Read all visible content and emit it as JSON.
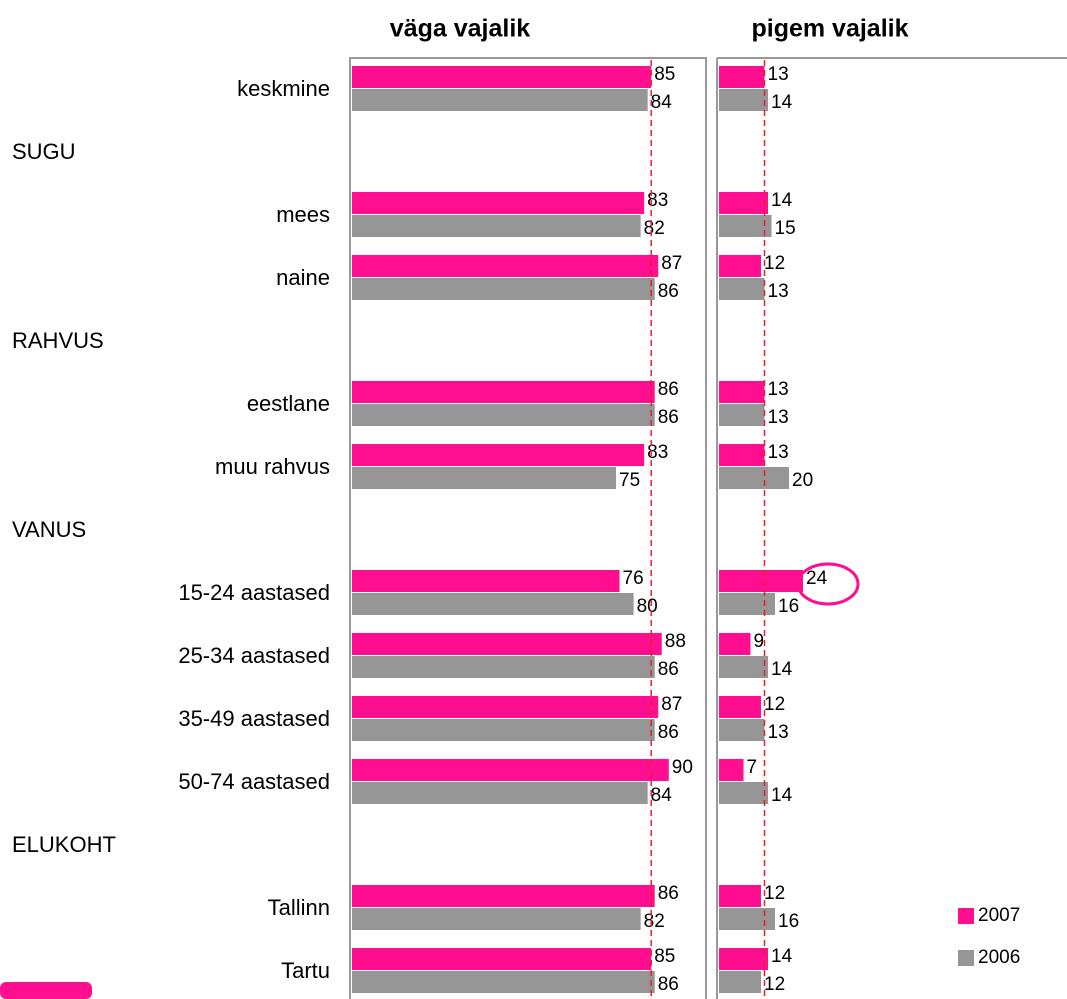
{
  "chart_data": [
    {
      "type": "bar",
      "title": "väga vajalik",
      "categories": [
        "keskmine",
        "SUGU",
        "mees",
        "naine",
        "RAHVUS",
        "eestlane",
        "muu rahvus",
        "VANUS",
        "15-24 aastased",
        "25-34 aastased",
        "35-49 aastased",
        "50-74 aastased",
        "ELUKOHT",
        "Tallinn",
        "Tartu"
      ],
      "xlim": [
        0,
        100
      ],
      "series": [
        {
          "name": "2007",
          "color": "#ff0f8f",
          "values": [
            85,
            null,
            83,
            87,
            null,
            86,
            83,
            null,
            76,
            88,
            87,
            90,
            null,
            86,
            85
          ]
        },
        {
          "name": "2006",
          "color": "#969696",
          "values": [
            84,
            null,
            82,
            86,
            null,
            86,
            75,
            null,
            80,
            86,
            86,
            84,
            null,
            82,
            86
          ]
        }
      ]
    },
    {
      "type": "bar",
      "title": "pigem vajalik",
      "xlim": [
        0,
        100
      ],
      "series": [
        {
          "color": "#ff0f8f",
          "values": [
            13,
            null,
            14,
            12,
            null,
            13,
            13,
            null,
            24,
            9,
            12,
            7,
            null,
            12,
            14
          ]
        },
        {
          "color": "#969696",
          "values": [
            14,
            null,
            15,
            13,
            null,
            13,
            20,
            null,
            16,
            14,
            13,
            14,
            null,
            16,
            12
          ]
        }
      ]
    }
  ]
}
